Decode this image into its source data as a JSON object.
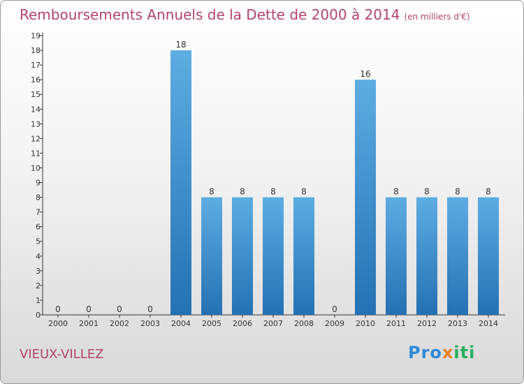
{
  "title": "Remboursements Annuels de la Dette de 2000 à 2014",
  "subtitle": "(en milliers d'€)",
  "commune": "VIEUX-VILLEZ",
  "logo": {
    "text": "Proxiti",
    "colors": [
      "#2f8ad8",
      "#e67e22",
      "#27ae60"
    ]
  },
  "colors": {
    "title": "#b3456b",
    "bar_top": "#5dade2",
    "bar_bottom": "#2471b3"
  },
  "chart_data": {
    "type": "bar",
    "categories": [
      "2000",
      "2001",
      "2002",
      "2003",
      "2004",
      "2005",
      "2006",
      "2007",
      "2008",
      "2009",
      "2010",
      "2011",
      "2012",
      "2013",
      "2014"
    ],
    "values": [
      0,
      0,
      0,
      0,
      18,
      8,
      8,
      8,
      8,
      0,
      16,
      8,
      8,
      8,
      8
    ],
    "data_labels": [
      "0",
      "0",
      "0",
      "0",
      "18",
      "8",
      "8",
      "8",
      "8",
      "0",
      "16",
      "8",
      "8",
      "8",
      "8"
    ],
    "ylim": [
      0,
      19
    ],
    "y_ticks": [
      0,
      1,
      2,
      3,
      4,
      5,
      6,
      7,
      8,
      9,
      10,
      11,
      12,
      13,
      14,
      15,
      16,
      17,
      18,
      19
    ],
    "xlabel": "",
    "ylabel": "",
    "grid": false,
    "legend": "none"
  }
}
